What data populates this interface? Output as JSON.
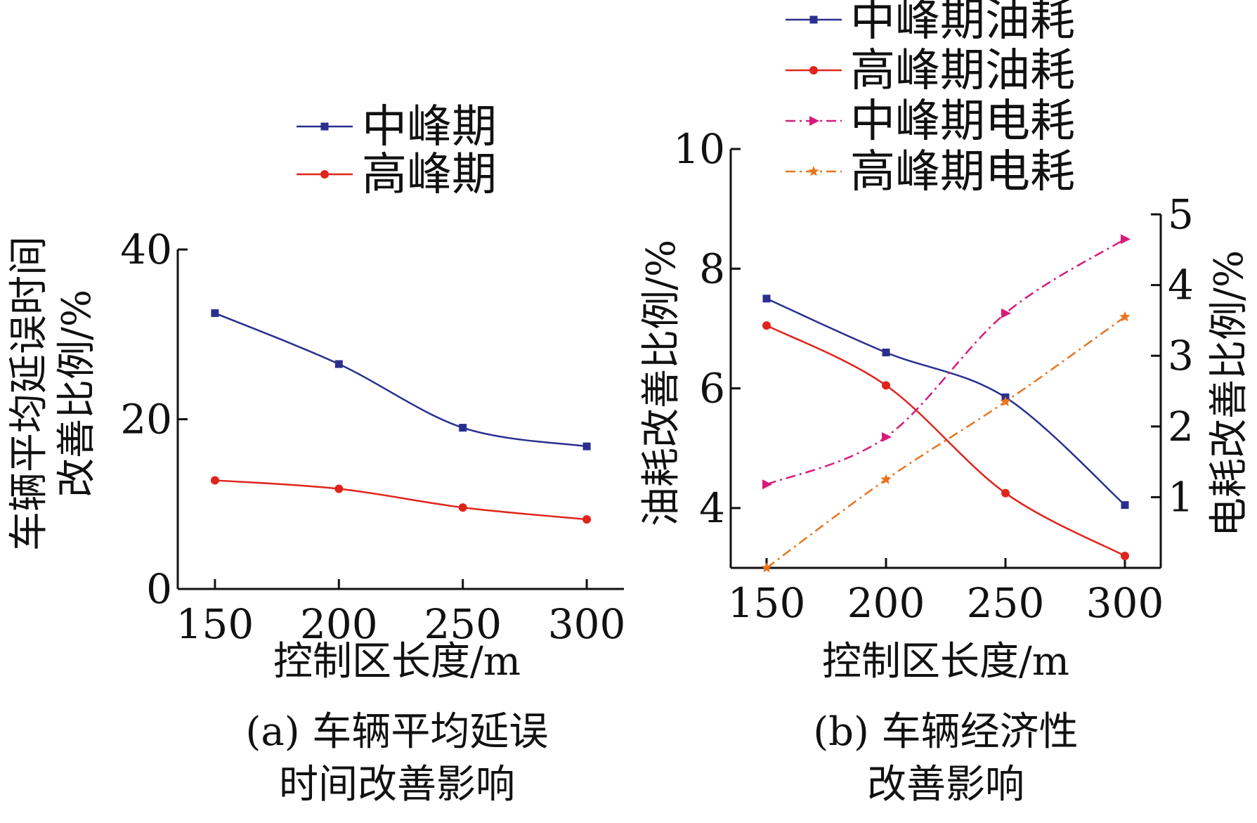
{
  "chart_data": [
    {
      "type": "line",
      "title": "",
      "caption_line1": "(a) 车辆平均延误",
      "caption_line2": "时间改善影响",
      "xlabel": "控制区长度/m",
      "ylabel_line1": "车辆平均延误时间",
      "ylabel_line2": "改善比例/%",
      "x": [
        150,
        200,
        250,
        300
      ],
      "xlim": [
        135,
        315
      ],
      "ylim": [
        0,
        40
      ],
      "yticks": [
        0,
        20,
        40
      ],
      "grid": false,
      "legend_position": "top",
      "series": [
        {
          "name": "中峰期",
          "color": "#2a2f8f",
          "marker": "square",
          "values": [
            32.5,
            26.5,
            19.0,
            16.8
          ]
        },
        {
          "name": "高峰期",
          "color": "#e0241b",
          "marker": "circle",
          "values": [
            12.8,
            11.8,
            9.6,
            8.2
          ]
        }
      ]
    },
    {
      "type": "line",
      "title": "",
      "caption_line1": "(b) 车辆经济性",
      "caption_line2": "改善影响",
      "xlabel": "控制区长度/m",
      "ylabel_left": "油耗改善比例/%",
      "ylabel_right": "电耗改善比例/%",
      "x": [
        150,
        200,
        250,
        300
      ],
      "xlim": [
        135,
        315
      ],
      "ylim_left": [
        3,
        10
      ],
      "yticks_left": [
        4,
        6,
        8,
        10
      ],
      "ylim_right": [
        0,
        5
      ],
      "yticks_right": [
        1,
        2,
        3,
        4,
        5
      ],
      "grid": false,
      "legend_position": "top",
      "series": [
        {
          "name": "中峰期油耗",
          "axis": "left",
          "color": "#2a2f8f",
          "marker": "square",
          "dash": "solid",
          "values": [
            7.5,
            6.6,
            5.85,
            4.05
          ]
        },
        {
          "name": "高峰期油耗",
          "axis": "left",
          "color": "#e0241b",
          "marker": "circle",
          "dash": "solid",
          "values": [
            7.05,
            6.05,
            4.25,
            3.2
          ]
        },
        {
          "name": "中峰期电耗",
          "axis": "right",
          "color": "#d81b7a",
          "marker": "triangle",
          "dash": "dashdot",
          "values": [
            1.18,
            1.85,
            3.6,
            4.65
          ]
        },
        {
          "name": "高峰期电耗",
          "axis": "right",
          "color": "#e8741e",
          "marker": "star",
          "dash": "dashdot",
          "values": [
            0.0,
            1.25,
            2.35,
            3.55
          ]
        }
      ]
    }
  ]
}
